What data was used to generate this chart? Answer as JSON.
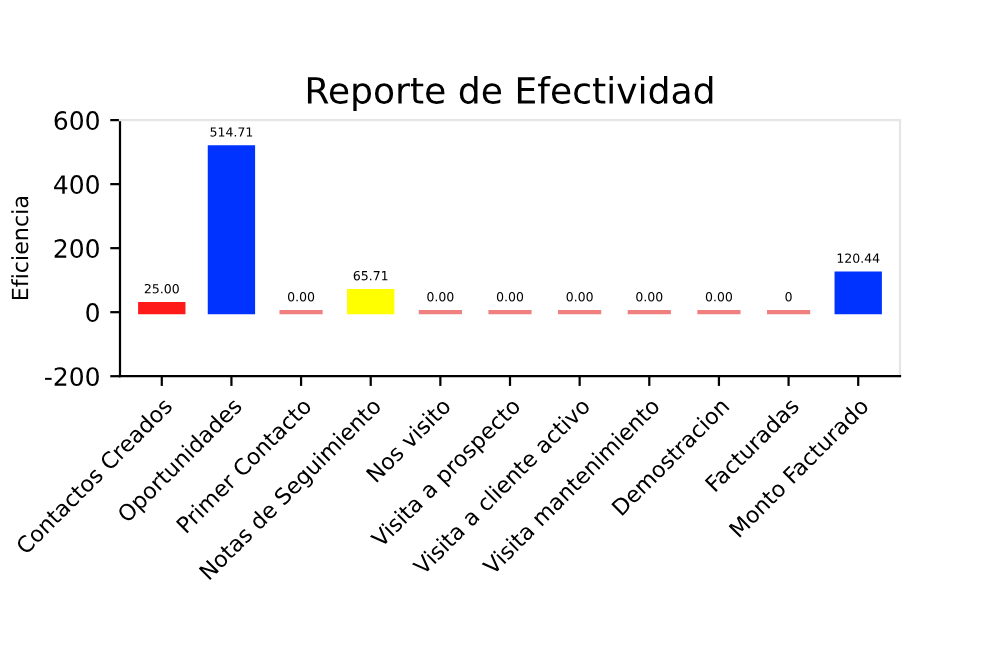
{
  "chart_data": {
    "type": "bar",
    "title": "Reporte de Efectividad",
    "ylabel": "Eficiencia",
    "categories": [
      "Contactos Creados",
      "Oportunidades",
      "Primer Contacto",
      "Notas de Seguimiento",
      "Nos visito",
      "Visita a prospecto",
      "Visita a cliente activo",
      "Visita mantenimiento",
      "Demostracion",
      "Facturadas",
      "Monto Facturado"
    ],
    "values": [
      25,
      514.71,
      0,
      65.71,
      0,
      0,
      0,
      0,
      0,
      0,
      120.44
    ],
    "value_labels": [
      "25.00",
      "514.71",
      "0.00",
      "65.71",
      "0.00",
      "0.00",
      "0.00",
      "0.00",
      "0.00",
      "0",
      "120.44"
    ],
    "colors": [
      "#ff1a1a",
      "#0033ff",
      "#f08080",
      "#ffff00",
      "#f08080",
      "#f08080",
      "#f08080",
      "#f08080",
      "#f08080",
      "#f08080",
      "#0033ff"
    ],
    "ylim": [
      -200,
      600
    ],
    "yticks": [
      -200,
      0,
      200,
      400,
      600
    ],
    "grid": false,
    "legend": false
  }
}
